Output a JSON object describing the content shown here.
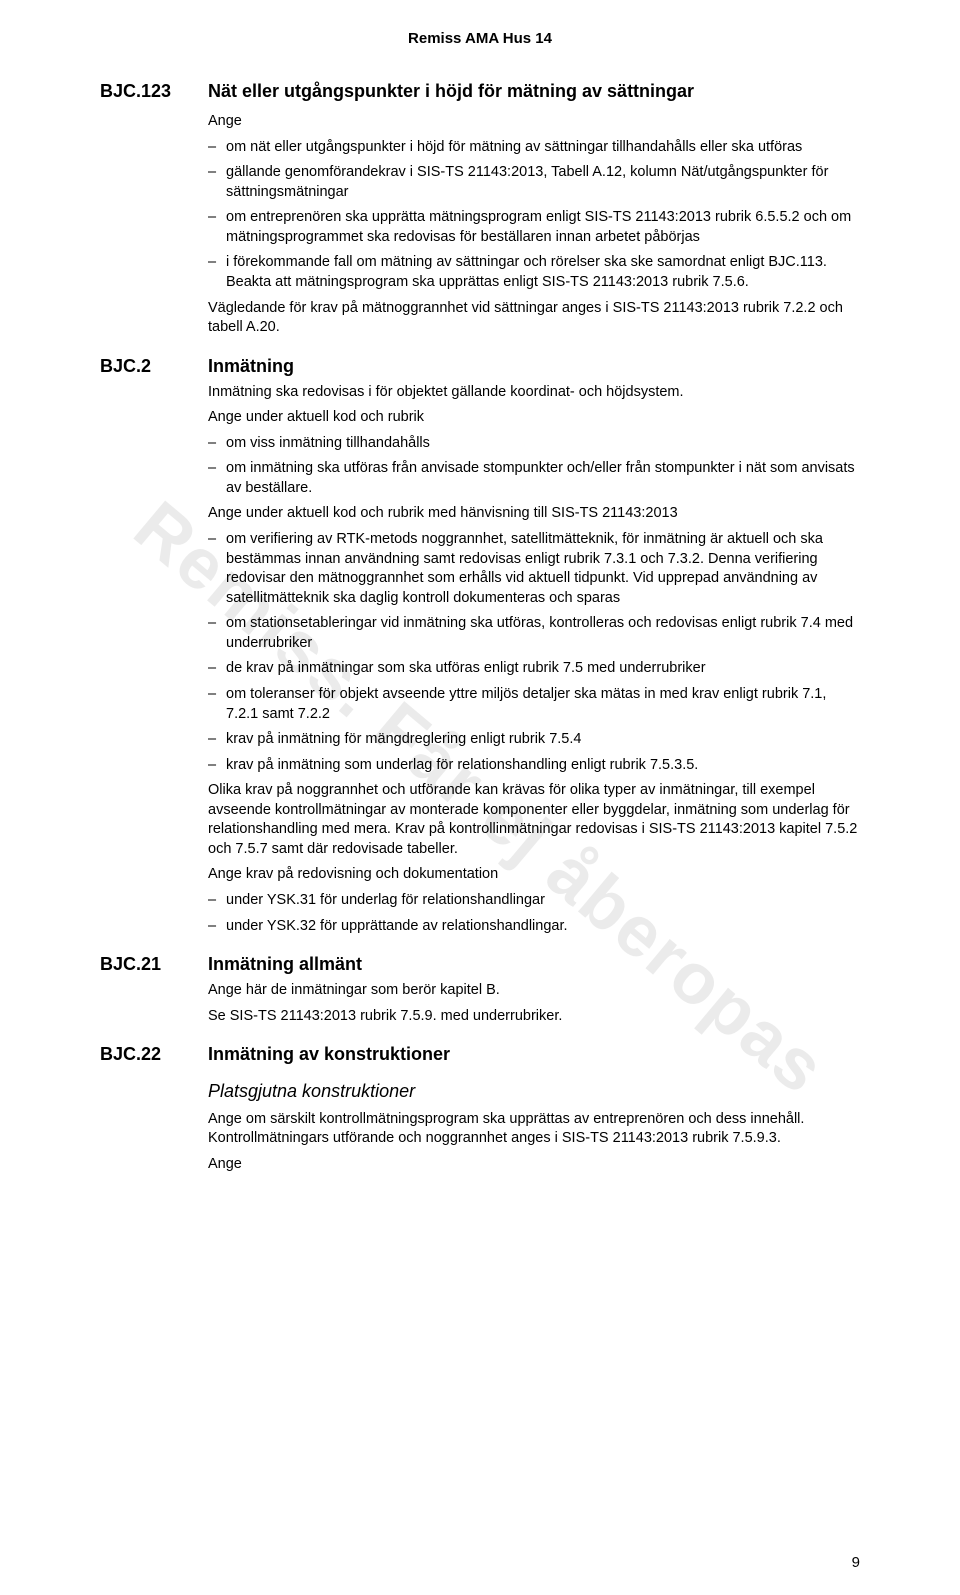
{
  "header": "Remiss AMA Hus 14",
  "watermark": "Remiss. Får ej åberopas",
  "page_number": "9",
  "sections": [
    {
      "code": "BJC.123",
      "title": "Nät eller utgångspunkter i höjd för mätning av sättningar",
      "lead": "Ange",
      "bullets": [
        "om nät eller utgångspunkter i höjd för mätning av sättningar tillhandahålls eller ska utföras",
        "gällande genomförandekrav i SIS-TS 21143:2013, Tabell A.12, kolumn Nät/utgångspunkter för sättningsmätningar",
        "om entreprenören ska upprätta mätningsprogram enligt SIS-TS 21143:2013 rubrik 6.5.5.2 och om mätningsprogrammet ska redovisas för beställaren innan arbetet påbörjas",
        "i förekommande fall om mätning av sättningar och rörelser ska ske samordnat enligt BJC.113. Beakta att mätningsprogram ska upprättas enligt SIS-TS 21143:2013 rubrik 7.5.6."
      ],
      "trailing": [
        "Vägledande för krav på mätnoggrannhet vid sättningar anges i SIS-TS 21143:2013 rubrik 7.2.2 och tabell A.20."
      ]
    },
    {
      "code": "BJC.2",
      "title": "Inmätning",
      "paras_before": [
        "Inmätning ska redovisas i för objektet gällande koordinat- och höjdsystem.",
        "Ange under aktuell kod och rubrik"
      ],
      "bullets1": [
        "om viss inmätning tillhandahålls",
        "om inmätning ska utföras från anvisade stompunkter och/eller från stompunkter i nät som anvisats av beställare."
      ],
      "mid_para": "Ange under aktuell kod och rubrik med hänvisning till SIS-TS 21143:2013",
      "bullets2": [
        "om verifiering av RTK-metods noggrannhet, satellitmätteknik, för inmätning är aktuell och ska bestämmas innan användning samt redovisas enligt rubrik 7.3.1 och 7.3.2. Denna verifiering redovisar den mätnoggrannhet som erhålls vid aktuell tidpunkt. Vid upprepad användning av satellitmätteknik ska daglig kontroll dokumenteras och sparas",
        "om stationsetableringar vid inmätning ska utföras, kontrolleras och redovisas enligt rubrik 7.4 med underrubriker",
        "de krav på inmätningar som ska utföras enligt rubrik 7.5 med underrubriker",
        "om toleranser för objekt avseende yttre miljös detaljer ska mätas in med krav enligt rubrik 7.1, 7.2.1 samt 7.2.2",
        "krav på inmätning för mängdreglering enligt rubrik 7.5.4",
        "krav på inmätning som underlag för relationshandling enligt rubrik 7.5.3.5."
      ],
      "mid_para2": "Olika krav på noggrannhet och utförande kan krävas för olika typer av inmätningar, till exempel avseende kontrollmätningar av monterade komponenter eller byggdelar, inmätning som underlag för relationshandling med mera. Krav på kontrollinmätningar redovisas i SIS-TS 21143:2013 kapitel 7.5.2 och 7.5.7 samt där redovisade tabeller.",
      "mid_para3": "Ange krav på redovisning och dokumentation",
      "bullets3": [
        "under YSK.31 för underlag för relationshandlingar",
        "under YSK.32 för upprättande av relationshandlingar."
      ]
    },
    {
      "code": "BJC.21",
      "title": "Inmätning allmänt",
      "paras": [
        "Ange här de inmätningar som berör kapitel B.",
        "Se SIS-TS 21143:2013 rubrik 7.5.9. med underrubriker."
      ]
    },
    {
      "code": "BJC.22",
      "title": "Inmätning av konstruktioner",
      "subheading": "Platsgjutna konstruktioner",
      "paras": [
        "Ange om särskilt kontrollmätningsprogram ska upprättas av entreprenören och dess innehåll. Kontrollmätningars utförande och noggrannhet anges i SIS-TS 21143:2013 rubrik 7.5.9.3.",
        "Ange"
      ]
    }
  ]
}
